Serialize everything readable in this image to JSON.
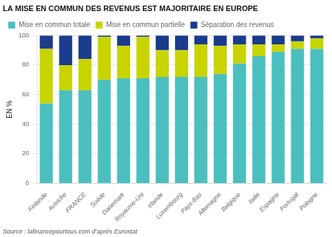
{
  "chart_data": {
    "type": "bar",
    "title": "LA MISE EN COMMUN DES REVENUS EST MAJORITAIRE EN EUROPE",
    "ylabel": "EN %",
    "annotations": [
      "Source : lafinancepourtous.com d’après Eurostat"
    ],
    "categories": [
      "Finlande",
      "Autriche",
      "FRANCE",
      "Suède",
      "Danemark",
      "Royaume-Uni",
      "Irlande",
      "Luxembourg",
      "Pays-Bas",
      "Allemagne",
      "Belgique",
      "Italie",
      "Espagne",
      "Portugal",
      "Pologne"
    ],
    "series": [
      {
        "name": "Mise en commun totale",
        "color": "#4bbfbf",
        "values": [
          54,
          63,
          63,
          70,
          71,
          71,
          72,
          72,
          72,
          74,
          81,
          86,
          89,
          91,
          91
        ]
      },
      {
        "name": "Mise en commun partielle",
        "color": "#c8d400",
        "values": [
          37,
          17,
          21,
          29,
          22,
          28,
          18,
          18,
          22,
          19,
          13,
          8,
          5,
          5,
          7
        ]
      },
      {
        "name": "Séparation des revenus",
        "color": "#1a3c8c",
        "values": [
          9,
          20,
          16,
          1,
          7,
          1,
          10,
          10,
          6,
          7,
          6,
          6,
          6,
          4,
          2
        ]
      }
    ],
    "stacked": true,
    "ylim": [
      0,
      100
    ],
    "yticks": [
      0,
      20,
      40,
      60,
      80,
      100
    ],
    "grid": true,
    "legend": "top"
  }
}
